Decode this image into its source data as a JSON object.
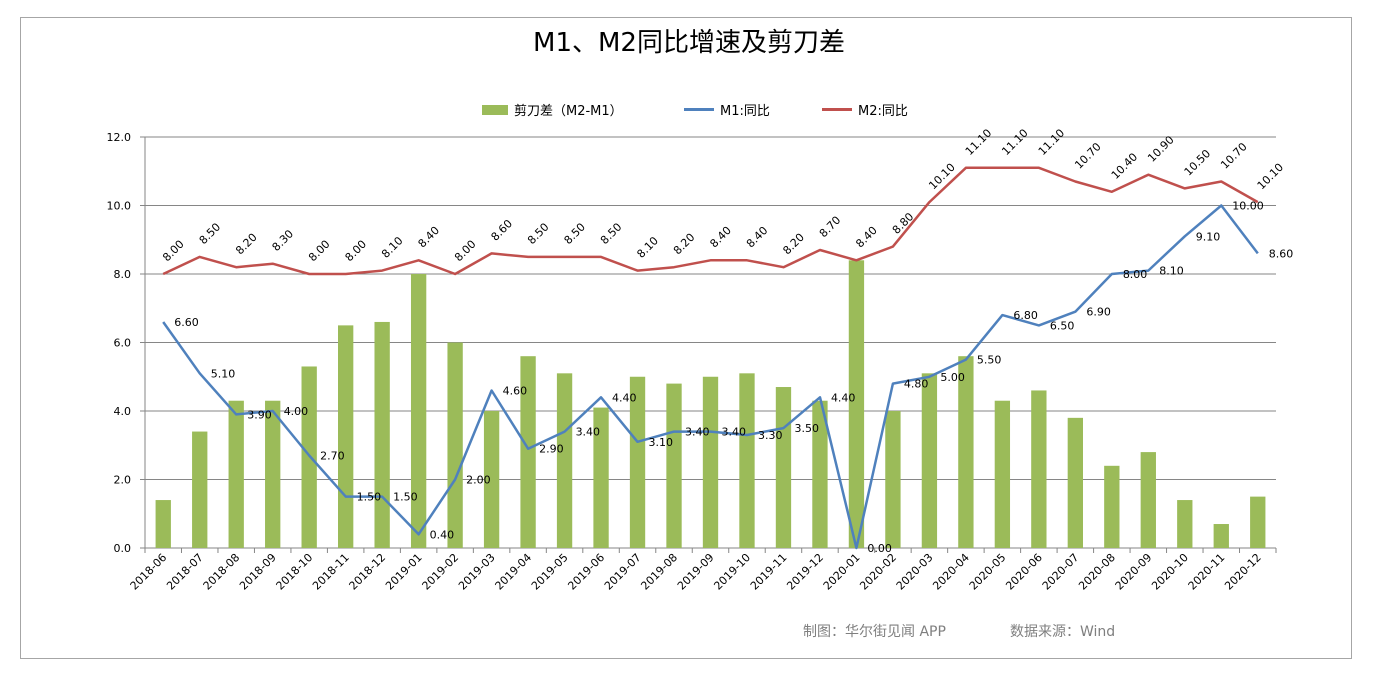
{
  "chart_data": {
    "type": "bar",
    "title": "M1、M2同比增速及剪刀差",
    "categories": [
      "2018-06",
      "2018-07",
      "2018-08",
      "2018-09",
      "2018-10",
      "2018-11",
      "2018-12",
      "2019-01",
      "2019-02",
      "2019-03",
      "2019-04",
      "2019-05",
      "2019-06",
      "2019-07",
      "2019-08",
      "2019-09",
      "2019-10",
      "2019-11",
      "2019-12",
      "2020-01",
      "2020-02",
      "2020-03",
      "2020-04",
      "2020-05",
      "2020-06",
      "2020-07",
      "2020-08",
      "2020-09",
      "2020-10",
      "2020-11",
      "2020-12"
    ],
    "series": [
      {
        "name": "剪刀差（M2-M1）",
        "type": "bar",
        "color": "#9bbb59",
        "values": [
          1.4,
          3.4,
          4.3,
          4.3,
          5.3,
          6.5,
          6.6,
          8.0,
          6.0,
          4.0,
          5.6,
          5.1,
          4.1,
          5.0,
          4.8,
          5.0,
          5.1,
          4.7,
          4.3,
          8.4,
          4.0,
          5.1,
          5.6,
          4.3,
          4.6,
          3.8,
          2.4,
          2.8,
          1.4,
          0.7,
          1.5
        ]
      },
      {
        "name": "M1:同比",
        "type": "line",
        "color": "#4f81bd",
        "values": [
          6.6,
          5.1,
          3.9,
          4.0,
          2.7,
          1.5,
          1.5,
          0.4,
          2.0,
          4.6,
          2.9,
          3.4,
          4.4,
          3.1,
          3.4,
          3.4,
          3.3,
          3.5,
          4.4,
          0.0,
          4.8,
          5.0,
          5.5,
          6.8,
          6.5,
          6.9,
          8.0,
          8.1,
          9.1,
          10.0,
          8.6
        ],
        "labels": [
          "6.60",
          "5.10",
          "3.90",
          "4.00",
          "2.70",
          "1.50",
          "1.50",
          "0.40",
          "2.00",
          "4.60",
          "2.90",
          "3.40",
          "4.40",
          "3.10",
          "3.40",
          "3.40",
          "3.30",
          "3.50",
          "4.40",
          "0.00",
          "4.80",
          "5.00",
          "5.50",
          "6.80",
          "6.50",
          "6.90",
          "8.00",
          "8.10",
          "9.10",
          "10.00",
          "8.60"
        ]
      },
      {
        "name": "M2:同比",
        "type": "line",
        "color": "#c0504d",
        "values": [
          8.0,
          8.5,
          8.2,
          8.3,
          8.0,
          8.0,
          8.1,
          8.4,
          8.0,
          8.6,
          8.5,
          8.5,
          8.5,
          8.1,
          8.2,
          8.4,
          8.4,
          8.2,
          8.7,
          8.4,
          8.8,
          10.1,
          11.1,
          11.1,
          11.1,
          10.7,
          10.4,
          10.9,
          10.5,
          10.7,
          10.1
        ],
        "labels": [
          "8.00",
          "8.50",
          "8.20",
          "8.30",
          "8.00",
          "8.00",
          "8.10",
          "8.40",
          "8.00",
          "8.60",
          "8.50",
          "8.50",
          "8.50",
          "8.10",
          "8.20",
          "8.40",
          "8.40",
          "8.20",
          "8.70",
          "8.40",
          "8.80",
          "10.10",
          "11.10",
          "11.10",
          "11.10",
          "10.70",
          "10.40",
          "10.90",
          "10.50",
          "10.70",
          "10.10"
        ]
      }
    ],
    "ylim": [
      0,
      12
    ],
    "yticks": [
      "0.0",
      "2.0",
      "4.0",
      "6.0",
      "8.0",
      "10.0",
      "12.0"
    ],
    "grid": true,
    "legend_position": "top"
  },
  "footer": {
    "made_by": "制图：华尔街见闻 APP",
    "source": "数据来源：Wind"
  }
}
